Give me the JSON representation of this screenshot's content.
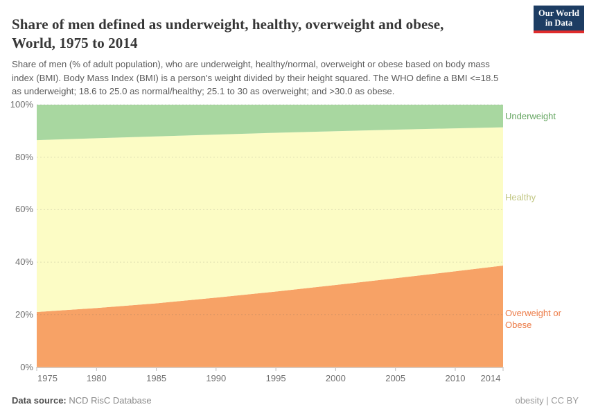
{
  "header": {
    "title_lines": [
      "Share of men defined as underweight, healthy, overweight and obese,",
      "World, 1975 to 2014"
    ],
    "logo": {
      "line1": "Our World",
      "line2": "in Data",
      "bg_color": "#1d3d63",
      "accent_color": "#e02c2c"
    }
  },
  "subtitle_lines": [
    "Share of men (% of adult population), who are underweight, healthy/normal, overweight or obese based on body mass",
    "index (BMI). Body Mass Index (BMI) is a person's weight divided by their height squared. The WHO define a BMI <=18.5",
    "as underweight; 18.6 to 25.0 as normal/healthy; 25.1 to 30 as overweight; and >30.0 as obese."
  ],
  "chart_data": {
    "type": "area",
    "stacked": true,
    "title": "Share of men defined as underweight, healthy, overweight and obese, World, 1975 to 2014",
    "x": [
      1975,
      1980,
      1985,
      1990,
      1995,
      2000,
      2005,
      2010,
      2014
    ],
    "series": [
      {
        "name": "Overweight or Obese",
        "color": "#f7a266",
        "label_color": "#ec7a45",
        "values": [
          21.0,
          22.5,
          24.3,
          26.5,
          28.8,
          31.3,
          33.9,
          36.5,
          38.7
        ]
      },
      {
        "name": "Healthy",
        "color": "#fcfcc5",
        "label_color": "#c1c682",
        "values": [
          65.5,
          64.7,
          63.6,
          62.1,
          60.5,
          58.6,
          56.6,
          54.5,
          52.7
        ]
      },
      {
        "name": "Underweight",
        "color": "#a8d7a0",
        "label_color": "#66a662",
        "values": [
          13.5,
          12.8,
          12.1,
          11.4,
          10.7,
          10.1,
          9.5,
          9.0,
          8.6
        ]
      }
    ],
    "ylim": [
      0,
      100
    ],
    "xlim": [
      1975,
      2014
    ],
    "y_ticks": [
      "0%",
      "20%",
      "40%",
      "60%",
      "80%",
      "100%"
    ],
    "x_ticks": [
      "1975",
      "1980",
      "1985",
      "1990",
      "1995",
      "2000",
      "2005",
      "2010",
      "2014"
    ],
    "grid": true,
    "legend_position": "right"
  },
  "footer": {
    "source_label": "Data source:",
    "source_value": " NCD RisC Database",
    "note": "obesity | CC BY"
  }
}
